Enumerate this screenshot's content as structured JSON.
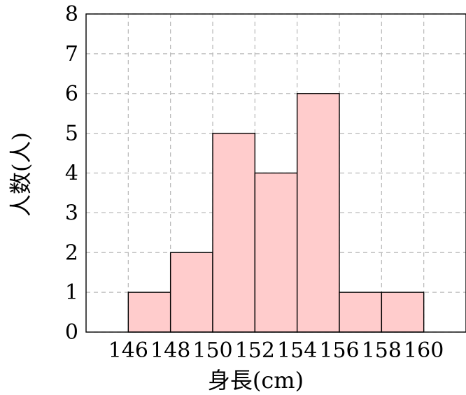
{
  "chart_data": {
    "type": "bar",
    "title": "",
    "xlabel": "身長(cm)",
    "ylabel": "人数(人)",
    "bin_edges": [
      146,
      148,
      150,
      152,
      154,
      156,
      158,
      160
    ],
    "values": [
      1,
      2,
      5,
      4,
      6,
      1,
      1
    ],
    "x_ticks": [
      "146",
      "148",
      "150",
      "152",
      "154",
      "156",
      "158",
      "160"
    ],
    "y_ticks": [
      "0",
      "1",
      "2",
      "3",
      "4",
      "5",
      "6",
      "7",
      "8"
    ],
    "xlim": [
      144,
      162
    ],
    "ylim": [
      0,
      8
    ],
    "grid": true,
    "bar_color": "#ffcccc",
    "edge_color": "#000000",
    "grid_color": "#b8b8b8"
  }
}
